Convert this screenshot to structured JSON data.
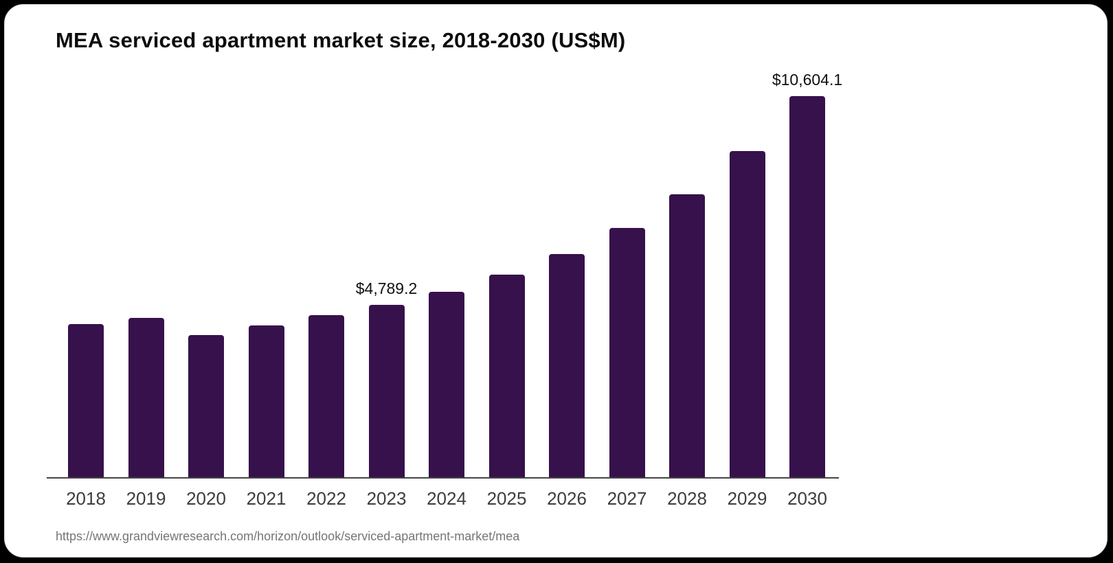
{
  "chart_data": {
    "type": "bar",
    "title": "MEA serviced apartment market size, 2018-2030 (US$M)",
    "source": "https://www.grandviewresearch.com/horizon/outlook/serviced-apartment-market/mea",
    "categories": [
      "2018",
      "2019",
      "2020",
      "2021",
      "2022",
      "2023",
      "2024",
      "2025",
      "2026",
      "2027",
      "2028",
      "2029",
      "2030"
    ],
    "values": [
      4260,
      4430,
      3950,
      4220,
      4510,
      4789.2,
      5160,
      5630,
      6210,
      6930,
      7870,
      9070,
      10604.1
    ],
    "point_labels": [
      null,
      null,
      null,
      null,
      null,
      "$4,789.2",
      null,
      null,
      null,
      null,
      null,
      null,
      "$10,604.1"
    ],
    "bar_color": "#36114b",
    "axis_line_color": "#454545",
    "tick_label_color": "#3d3d3d",
    "value_label_color": "#111111",
    "title_color": "#0d0d0d",
    "source_color": "#757575",
    "xlabel": "",
    "ylabel": "",
    "ylim": [
      0,
      10700
    ],
    "grid": false,
    "legend": false
  }
}
